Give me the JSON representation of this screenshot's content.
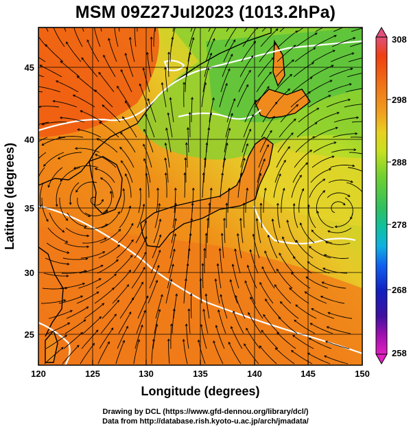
{
  "title": "MSM 09Z27Jul2023 (1013.2hPa)",
  "x_axis": {
    "label": "Longitude (degrees)",
    "ticks": [
      "120",
      "125",
      "130",
      "135",
      "140",
      "145",
      "150"
    ]
  },
  "y_axis": {
    "label": "Latitude  (degrees)",
    "ticks": [
      "25",
      "30",
      "35",
      "40",
      "45"
    ]
  },
  "colorbar": {
    "ticks": [
      "308",
      "298",
      "288",
      "278",
      "268",
      "258"
    ],
    "colors": [
      "#e0507a",
      "#f04010",
      "#f07818",
      "#f0a020",
      "#e8d020",
      "#c8e020",
      "#70d030",
      "#30c060",
      "#10c0a0",
      "#10b0e0",
      "#1060f0",
      "#1020c0",
      "#4010a0",
      "#a010b0",
      "#e020c0"
    ]
  },
  "footer": {
    "line1": "Drawing by DCL (https://www.gfd-dennou.org/library/dcl/)",
    "line2": "Data from http://database.rish.kyoto-u.ac.jp/arch/jmadata/"
  }
}
